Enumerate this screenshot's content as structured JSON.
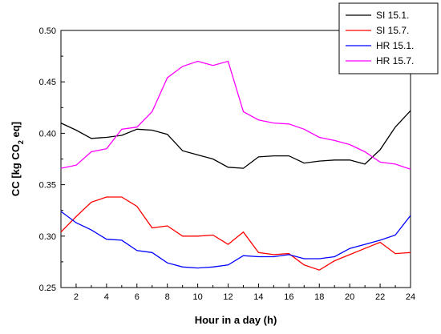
{
  "chart_data": {
    "type": "line",
    "xlabel": "Hour in a day (h)",
    "ylabel": {
      "prefix": "CC [kg CO",
      "sub": "2",
      "suffix": " eq]"
    },
    "xlim": [
      1,
      24
    ],
    "ylim": [
      0.25,
      0.5
    ],
    "xticks": [
      2,
      4,
      6,
      8,
      10,
      12,
      14,
      16,
      18,
      20,
      22,
      24
    ],
    "yticks": [
      0.25,
      0.3,
      0.35,
      0.4,
      0.45,
      0.5
    ],
    "ytick_labels": [
      "0.25",
      "0.30",
      "0.35",
      "0.40",
      "0.45",
      "0.50"
    ],
    "grid": false,
    "legend_position": "top-right",
    "x": [
      1,
      2,
      3,
      4,
      5,
      6,
      7,
      8,
      9,
      10,
      11,
      12,
      13,
      14,
      15,
      16,
      17,
      18,
      19,
      20,
      21,
      22,
      23,
      24
    ],
    "series": [
      {
        "name": "SI 15.1.",
        "color": "#000000",
        "values": [
          0.41,
          0.403,
          0.395,
          0.396,
          0.398,
          0.404,
          0.403,
          0.399,
          0.383,
          0.379,
          0.375,
          0.367,
          0.366,
          0.377,
          0.378,
          0.378,
          0.371,
          0.373,
          0.374,
          0.374,
          0.37,
          0.384,
          0.406,
          0.422
        ]
      },
      {
        "name": "SI 15.7.",
        "color": "#ff0000",
        "values": [
          0.304,
          0.319,
          0.333,
          0.338,
          0.338,
          0.329,
          0.308,
          0.31,
          0.3,
          0.3,
          0.301,
          0.292,
          0.304,
          0.284,
          0.282,
          0.283,
          0.272,
          0.267,
          0.276,
          0.282,
          0.288,
          0.294,
          0.283,
          0.284
        ]
      },
      {
        "name": "HR 15.1.",
        "color": "#0000ff",
        "values": [
          0.324,
          0.313,
          0.306,
          0.297,
          0.296,
          0.286,
          0.284,
          0.274,
          0.27,
          0.269,
          0.27,
          0.272,
          0.281,
          0.28,
          0.28,
          0.282,
          0.278,
          0.278,
          0.28,
          0.288,
          0.292,
          0.296,
          0.301,
          0.32
        ]
      },
      {
        "name": "HR 15.7.",
        "color": "#ff00ff",
        "values": [
          0.366,
          0.369,
          0.382,
          0.385,
          0.404,
          0.406,
          0.421,
          0.454,
          0.465,
          0.47,
          0.466,
          0.47,
          0.421,
          0.413,
          0.41,
          0.409,
          0.404,
          0.396,
          0.393,
          0.389,
          0.382,
          0.372,
          0.37,
          0.365
        ]
      }
    ]
  }
}
